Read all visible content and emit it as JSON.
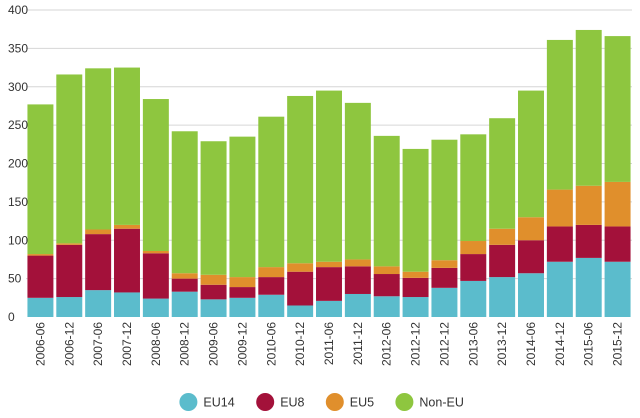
{
  "chart_data": {
    "type": "bar",
    "stacked": true,
    "title": "",
    "xlabel": "",
    "ylabel": "",
    "ylim": [
      0,
      400
    ],
    "yticks": [
      0,
      50,
      100,
      150,
      200,
      250,
      300,
      350,
      400
    ],
    "grid": true,
    "legend_position": "bottom-center",
    "categories": [
      "2006-06",
      "2006-12",
      "2007-06",
      "2007-12",
      "2008-06",
      "2008-12",
      "2009-06",
      "2009-12",
      "2010-06",
      "2010-12",
      "2011-06",
      "2011-12",
      "2012-06",
      "2012-12",
      "2012-12",
      "2013-06",
      "2013-12",
      "2014-06",
      "2014-12",
      "2015-06",
      "2015-12"
    ],
    "series": [
      {
        "name": "EU14",
        "color": "#5bbccc",
        "values": [
          25,
          26,
          35,
          32,
          24,
          33,
          23,
          25,
          29,
          15,
          21,
          30,
          27,
          26,
          38,
          47,
          52,
          57,
          72,
          77,
          72
        ]
      },
      {
        "name": "EU8",
        "color": "#a3113a",
        "values": [
          55,
          68,
          73,
          83,
          59,
          17,
          19,
          14,
          23,
          44,
          44,
          36,
          29,
          25,
          26,
          35,
          42,
          43,
          46,
          43,
          46
        ]
      },
      {
        "name": "EU5",
        "color": "#e08f2c",
        "values": [
          2,
          2,
          6,
          5,
          3,
          7,
          13,
          13,
          13,
          11,
          7,
          9,
          10,
          8,
          10,
          17,
          21,
          30,
          48,
          51,
          58
        ]
      },
      {
        "name": "Non-EU",
        "color": "#8ec63f",
        "values": [
          195,
          220,
          210,
          205,
          198,
          185,
          174,
          183,
          196,
          218,
          223,
          204,
          170,
          160,
          157,
          139,
          144,
          165,
          195,
          203,
          190
        ]
      }
    ]
  }
}
